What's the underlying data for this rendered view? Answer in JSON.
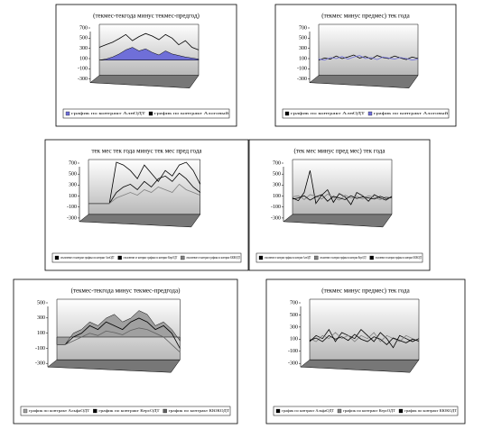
{
  "chart_data": [
    {
      "type": "line",
      "title": "(текмес-текгода минус текмес-предгод)",
      "ylim": [
        -300,
        700
      ],
      "yticks": [
        -300,
        -100,
        100,
        300,
        500,
        700
      ],
      "series": [
        {
          "name": "график по контракт АлнОДТ",
          "color": "#6f6fd8",
          "type": "area",
          "values": [
            0,
            20,
            60,
            120,
            200,
            250,
            180,
            220,
            150,
            100,
            180,
            120,
            90,
            60,
            40,
            20
          ]
        },
        {
          "name": "график по контракт Алоговый",
          "color": "#000000",
          "type": "line",
          "values": [
            250,
            300,
            350,
            420,
            500,
            380,
            460,
            520,
            470,
            400,
            500,
            430,
            300,
            380,
            250,
            200
          ]
        }
      ]
    },
    {
      "type": "line",
      "title": "(текмес минус предмес) тек года",
      "ylim": [
        -300,
        700
      ],
      "yticks": [
        -300,
        -100,
        100,
        300,
        500,
        700
      ],
      "series": [
        {
          "name": "график по контракт АлнОДТ",
          "color": "#000000",
          "type": "line",
          "values": [
            0,
            40,
            20,
            80,
            30,
            60,
            100,
            40,
            70,
            20,
            90,
            50,
            30,
            80,
            40,
            10,
            60,
            30
          ]
        },
        {
          "name": "график по контракт Алоговый",
          "color": "#6f6fd8",
          "type": "line",
          "values": [
            20,
            0,
            50,
            30,
            70,
            20,
            60,
            90,
            30,
            50,
            10,
            60,
            40,
            20,
            50,
            30,
            0,
            20
          ]
        }
      ]
    },
    {
      "type": "line",
      "title": "тек мес тек года минус тек мес пред года",
      "ylim": [
        -300,
        700
      ],
      "yticks": [
        -300,
        -100,
        100,
        300,
        500,
        700
      ],
      "series": [
        {
          "name": "отклонение от контракт графика по контракт АлнОДТ",
          "color": "#000000",
          "type": "line",
          "values": [
            -100,
            -100,
            -100,
            -100,
            650,
            600,
            500,
            350,
            600,
            450,
            300,
            500,
            400,
            600,
            650,
            500,
            250
          ]
        },
        {
          "name": "отклонение от контракт графика по контракт КерсОДТ",
          "color": "#000000",
          "type": "line",
          "values": [
            -100,
            -100,
            -100,
            -100,
            100,
            200,
            250,
            150,
            300,
            200,
            350,
            400,
            300,
            450,
            350,
            200,
            100
          ]
        },
        {
          "name": "отклонение от контракт графика по контракт КЮКОДТ",
          "color": "#808080",
          "type": "line",
          "values": [
            -100,
            -100,
            -100,
            -100,
            0,
            50,
            100,
            50,
            150,
            100,
            200,
            150,
            100,
            250,
            150,
            100,
            50
          ]
        }
      ]
    },
    {
      "type": "line",
      "title": "(тек мес минус пред мес) тек года",
      "ylim": [
        -300,
        700
      ],
      "yticks": [
        -300,
        -100,
        100,
        300,
        500,
        700
      ],
      "series": [
        {
          "name": "отклонение от контракт графика по контракт АлнОДТ",
          "color": "#000000",
          "type": "line",
          "values": [
            0,
            -50,
            100,
            500,
            -100,
            50,
            150,
            -80,
            80,
            20,
            -120,
            100,
            40,
            -60,
            60,
            0,
            -40,
            30
          ]
        },
        {
          "name": "отклонение от контракт графика по контракт КерсОДТ",
          "color": "#808080",
          "type": "line",
          "values": [
            20,
            40,
            -30,
            60,
            30,
            -20,
            70,
            10,
            -40,
            50,
            0,
            30,
            -20,
            40,
            10,
            -30,
            20,
            0
          ]
        },
        {
          "name": "отклонение от контракт графика по контракт КЮКОДТ",
          "color": "#000000",
          "type": "line",
          "values": [
            -20,
            0,
            40,
            -40,
            20,
            60,
            -60,
            30,
            0,
            -30,
            40,
            -10,
            20,
            0,
            -20,
            30,
            -10,
            10
          ]
        }
      ]
    },
    {
      "type": "line",
      "title": "(текмес-текгода минус текмес-предгода)",
      "ylim": [
        -300,
        500
      ],
      "yticks": [
        -300,
        -100,
        100,
        300,
        500
      ],
      "series": [
        {
          "name": "график по контракт АльфаОДТ",
          "color": "#a0a0a0",
          "type": "area",
          "values": [
            -100,
            -100,
            50,
            100,
            200,
            150,
            250,
            300,
            200,
            250,
            350,
            300,
            150,
            200,
            100,
            -50
          ]
        },
        {
          "name": "график по контракт КерсОДТ",
          "color": "#000000",
          "type": "line",
          "values": [
            -100,
            -100,
            0,
            50,
            150,
            100,
            200,
            150,
            100,
            200,
            250,
            200,
            100,
            150,
            50,
            -150
          ]
        },
        {
          "name": "график по контракт КЮКОДТ",
          "color": "#606060",
          "type": "line",
          "values": [
            -100,
            -100,
            -50,
            0,
            50,
            20,
            80,
            60,
            30,
            90,
            120,
            100,
            50,
            0,
            -100,
            -200
          ]
        }
      ]
    },
    {
      "type": "line",
      "title": "(текмес минус предмес) тек года",
      "ylim": [
        -300,
        700
      ],
      "yticks": [
        -300,
        -100,
        100,
        300,
        500,
        700
      ],
      "series": [
        {
          "name": "график по контракт АльфаОДТ",
          "color": "#000000",
          "type": "line",
          "values": [
            0,
            100,
            50,
            200,
            0,
            150,
            100,
            50,
            200,
            100,
            0,
            150,
            50,
            -100,
            100,
            50,
            0,
            50
          ]
        },
        {
          "name": "график по контракт КерсОДТ",
          "color": "#808080",
          "type": "line",
          "values": [
            50,
            0,
            100,
            50,
            150,
            50,
            100,
            0,
            100,
            50,
            150,
            0,
            100,
            50,
            0,
            100,
            50,
            0
          ]
        },
        {
          "name": "график по контракт КЮКОДТ",
          "color": "#000000",
          "type": "line",
          "values": [
            20,
            60,
            0,
            100,
            40,
            80,
            20,
            120,
            40,
            0,
            80,
            40,
            -50,
            60,
            20,
            -20,
            40,
            10
          ]
        }
      ]
    }
  ]
}
